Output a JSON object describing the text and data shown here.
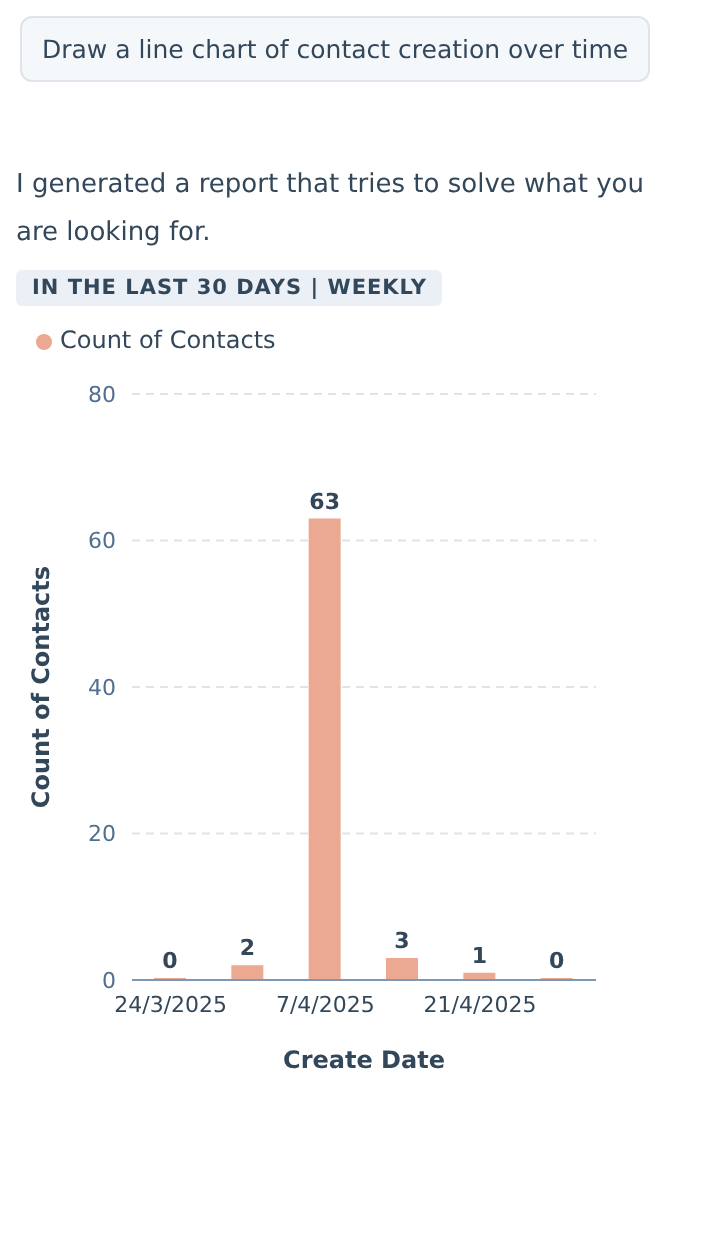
{
  "chart_data": {
    "type": "bar",
    "subtitle": "IN THE LAST 30 DAYS | WEEKLY",
    "annotations": [
      "Draw a line chart of contact creation over time",
      "I generated a report that tries to solve what you are looking for."
    ],
    "categories": [
      "24/3/2025",
      null,
      "7/4/2025",
      null,
      "21/4/2025",
      null
    ],
    "series": [
      {
        "name": "Count of Contacts",
        "color": "#eaa990",
        "values": [
          0,
          2,
          63,
          3,
          1,
          0
        ]
      }
    ],
    "xlabel": "Create Date",
    "ylabel": "Count of Contacts",
    "ylim": [
      0,
      80
    ],
    "yticks": [
      0,
      20,
      40,
      60,
      80
    ],
    "grid": "y",
    "legend": "top left",
    "data_labels": true
  }
}
